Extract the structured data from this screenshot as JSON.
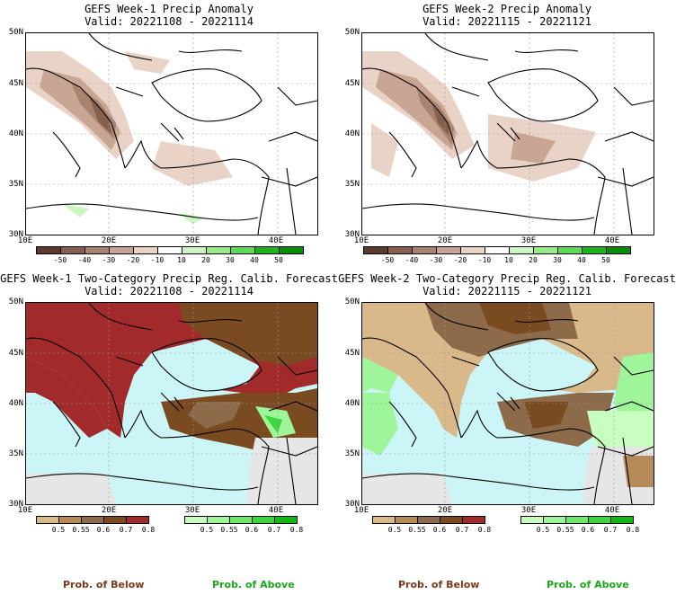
{
  "panels": [
    {
      "title_line1": "GEFS Week-1 Precip Anomaly",
      "title_line2": "Valid: 20221108 - 20221114"
    },
    {
      "title_line1": "GEFS Week-2 Precip Anomaly",
      "title_line2": "Valid: 20221115 - 20221121"
    },
    {
      "title_line1": "GEFS Week-1 Two-Category Precip Reg. Calib. Forecast",
      "title_line2": "Valid: 20221108 - 20221114"
    },
    {
      "title_line1": "GEFS Week-2 Two-Category Precip Reg. Calib. Forecast",
      "title_line2": "Valid: 20221115 - 20221121"
    }
  ],
  "axes": {
    "lat_labels": [
      "50N",
      "45N",
      "40N",
      "35N",
      "30N"
    ],
    "lon_labels": [
      "10E",
      "20E",
      "30E",
      "40E"
    ]
  },
  "anomaly_colorbar": {
    "ticks": [
      "-50",
      "-40",
      "-30",
      "-20",
      "-10",
      "10",
      "20",
      "30",
      "40",
      "50"
    ],
    "colors": [
      "#5c3a2c",
      "#87604c",
      "#a8836f",
      "#c9a594",
      "#e9d3c6",
      "#ffffff",
      "#ccf5c3",
      "#99eb8a",
      "#5fd95a",
      "#1fb31f",
      "#0a8c0a"
    ]
  },
  "prob_below_colorbar": {
    "ticks": [
      "0.5",
      "0.55",
      "0.6",
      "0.7",
      "0.8"
    ],
    "colors": [
      "#d9b98a",
      "#b58c59",
      "#8c6a4a",
      "#7a4a20",
      "#a32a2a"
    ]
  },
  "prob_above_colorbar": {
    "ticks": [
      "0.5",
      "0.55",
      "0.6",
      "0.7",
      "0.8"
    ],
    "colors": [
      "#c8ffc0",
      "#9ef59a",
      "#6ee86a",
      "#3dd63d",
      "#14b814"
    ]
  },
  "legend": {
    "below_label": "Prob. of Below",
    "above_label": "Prob. of Above",
    "below_color": "#7a3a1a",
    "above_color": "#1aa81a"
  },
  "colors": {
    "sea": "#ccf5f8",
    "missing": "#e6e6e6",
    "coast": "#000000",
    "grid": "#999999"
  }
}
